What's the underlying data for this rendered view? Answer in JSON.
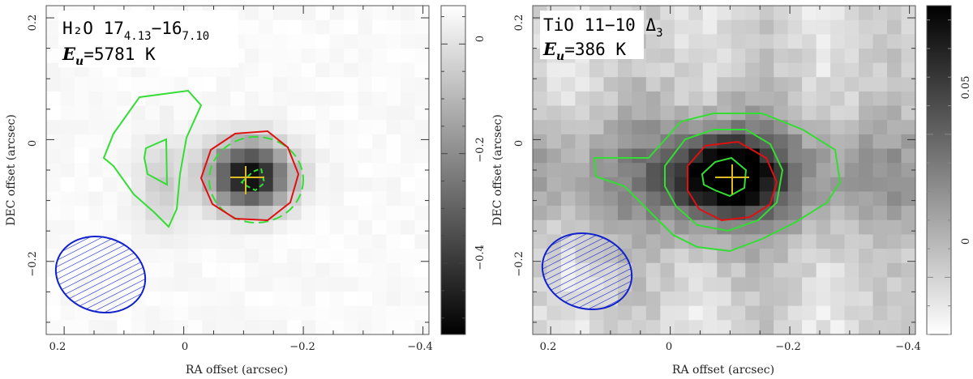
{
  "chart_data": [
    {
      "type": "heatmap",
      "title_main": "H₂O 17",
      "title_sub_lower": "4.13",
      "title_mid": "−16",
      "title_sub_lower2": "7.10",
      "title_line2_var": "E",
      "title_line2_sub": "u",
      "title_line2_val": "=5781 K",
      "xlabel": "RA offset (arcsec)",
      "ylabel": "DEC offset (arcsec)",
      "x_ticks": [
        "0.2",
        "0",
        "−0.2",
        "−0.4"
      ],
      "y_ticks": [
        "0.2",
        "0",
        "−0.2"
      ],
      "xlim": [
        0.23,
        -0.41
      ],
      "ylim": [
        -0.32,
        0.22
      ],
      "colorbar_ticks": [
        "0",
        "−0.2",
        "−0.4"
      ],
      "colorbar_range": [
        -0.53,
        0.07
      ],
      "colormap": "white-high",
      "peak_position": [
        -0.11,
        -0.06
      ],
      "beam_center": [
        0.14,
        -0.24
      ],
      "contour_colors": {
        "green": "#33dd33",
        "red": "#dd1111",
        "beam": "#1122cc",
        "marker": "#ddbb22"
      }
    },
    {
      "type": "heatmap",
      "title_main": "TiO 11−10 Δ",
      "title_sub_lower": "3",
      "title_line2_var": "E",
      "title_line2_sub": "u",
      "title_line2_val": "=386 K",
      "xlabel": "RA offset (arcsec)",
      "ylabel": "DEC offset (arcsec)",
      "x_ticks": [
        "0.2",
        "0",
        "−0.2",
        "−0.4"
      ],
      "y_ticks": [
        "0.2",
        "0",
        "−0.2"
      ],
      "xlim": [
        0.23,
        -0.41
      ],
      "ylim": [
        -0.32,
        0.22
      ],
      "colorbar_ticks": [
        "0.05",
        "0"
      ],
      "colorbar_range": [
        -0.02,
        0.095
      ],
      "colormap": "black-high",
      "peak_position": [
        -0.09,
        -0.06
      ],
      "beam_center": [
        0.14,
        -0.22
      ],
      "contour_colors": {
        "green": "#33dd33",
        "red": "#dd1111",
        "beam": "#1122cc",
        "marker": "#ddbb22"
      }
    }
  ]
}
